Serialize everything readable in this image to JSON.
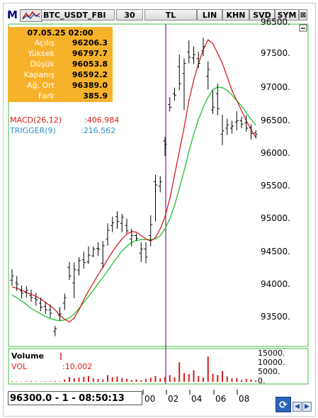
{
  "toolbar": {
    "logo": "M",
    "symbol": "BTC_USDT_FBI",
    "period": "30",
    "currency": "TL",
    "buttons": [
      "LIN",
      "KHN",
      "SVD",
      "SYM"
    ],
    "close_glyph": "⊠",
    "pin_glyph": "▭"
  },
  "info": {
    "datetime": "07.05.25 02:00",
    "rows": [
      {
        "label": "Açılış",
        "value": "96206.3"
      },
      {
        "label": "Yüksek",
        "value": "96797.7"
      },
      {
        "label": "Düşük",
        "value": "96053.8"
      },
      {
        "label": "Kapanış",
        "value": "96592.2"
      },
      {
        "label": "Ağ. Ort",
        "value": "96389.0"
      },
      {
        "label": "Fark",
        "value": "385.9"
      }
    ]
  },
  "indicators": {
    "macd_label": "MACD(26,12)",
    "macd_value": ":406.984",
    "trigger_label": "TRIGGER(9)",
    "trigger_value": ":216.562"
  },
  "price_axis": [
    "97500.",
    "97000.",
    "96500.",
    "96000.",
    "95500.",
    "95000.",
    "94500.",
    "94000.",
    "93500."
  ],
  "volume": {
    "title": "Volume",
    "label": "VOL",
    "value": ":10,002",
    "axis": [
      "15000.",
      "10000.",
      "5000.",
      "0."
    ]
  },
  "status": {
    "readout": "96300.0 - 1 - 08:50:13"
  },
  "time_axis": [
    "00",
    "02",
    "04",
    "06",
    "08"
  ],
  "nav": {
    "refresh_glyph": "⟳",
    "left_glyph": "◀",
    "right_glyph": "▶"
  },
  "colors": {
    "info_bg": "#f7b22b",
    "chart_border": "#3fbf3f",
    "macd_line": "#d91b1b",
    "trigger_line": "#22c22a",
    "cursor_line": "#7a1f9a",
    "volume_bar": "#d91b1b"
  },
  "chart_data": {
    "type": "ohlc",
    "ylim": [
      93200,
      97900
    ],
    "ohlc": [
      [
        94140,
        94300,
        94060,
        94200
      ],
      [
        94100,
        94200,
        93980,
        94080
      ],
      [
        93980,
        94060,
        93870,
        93950
      ],
      [
        93960,
        94050,
        93880,
        93990
      ],
      [
        93910,
        94000,
        93820,
        93880
      ],
      [
        93870,
        93950,
        93760,
        93850
      ],
      [
        93800,
        93880,
        93680,
        93740
      ],
      [
        93750,
        93820,
        93640,
        93700
      ],
      [
        93700,
        93780,
        93580,
        93650
      ],
      [
        93380,
        93460,
        93310,
        93420
      ],
      [
        93620,
        93740,
        93540,
        93640
      ],
      [
        93800,
        93940,
        93700,
        93880
      ],
      [
        94330,
        94410,
        94140,
        94200
      ],
      [
        94100,
        94400,
        93870,
        94300
      ],
      [
        94290,
        94480,
        94210,
        94430
      ],
      [
        94440,
        94560,
        94310,
        94400
      ],
      [
        94410,
        94640,
        94380,
        94510
      ],
      [
        94500,
        94640,
        94480,
        94600
      ],
      [
        94610,
        94700,
        94500,
        94600
      ],
      [
        94390,
        94720,
        94320,
        94650
      ],
      [
        94750,
        94980,
        94650,
        94880
      ],
      [
        94950,
        95080,
        94850,
        94990
      ],
      [
        95080,
        95160,
        94900,
        95010
      ],
      [
        94980,
        95120,
        94850,
        95070
      ],
      [
        94950,
        95050,
        94830,
        94870
      ],
      [
        94750,
        94900,
        94640,
        94800
      ],
      [
        94800,
        94830,
        94720,
        94760
      ],
      [
        94540,
        94700,
        94410,
        94600
      ],
      [
        94600,
        94700,
        94390,
        94480
      ],
      [
        94800,
        95100,
        94640,
        94960
      ],
      [
        95600,
        95700,
        95010,
        95550
      ],
      [
        95530,
        95680,
        95440,
        95600
      ],
      [
        96200,
        96260,
        95980,
        96150
      ],
      [
        96740,
        96850,
        96640,
        96700
      ],
      [
        96900,
        96990,
        96800,
        96880
      ],
      [
        97300,
        97480,
        96950,
        97050
      ],
      [
        97200,
        97420,
        96660,
        97350
      ],
      [
        97520,
        97690,
        97350,
        97440
      ],
      [
        97430,
        97600,
        97340,
        97480
      ],
      [
        97420,
        97520,
        97280,
        97350
      ],
      [
        97540,
        97730,
        97460,
        97600
      ],
      [
        97160,
        97380,
        96960,
        97260
      ],
      [
        96660,
        96950,
        96600,
        96700
      ],
      [
        96900,
        97050,
        96580,
        96680
      ],
      [
        96300,
        96590,
        96140,
        96350
      ],
      [
        96390,
        96530,
        96290,
        96440
      ],
      [
        96390,
        96500,
        96310,
        96420
      ],
      [
        96480,
        96640,
        96360,
        96500
      ],
      [
        96500,
        96560,
        96390,
        96450
      ],
      [
        96470,
        96580,
        96340,
        96390
      ],
      [
        96400,
        96450,
        96220,
        96310
      ],
      [
        96320,
        96360,
        96240,
        96300
      ]
    ],
    "fast_line": [
      94040,
      94020,
      93990,
      93960,
      93930,
      93900,
      93860,
      93810,
      93760,
      93700,
      93620,
      93560,
      93520,
      93580,
      93700,
      93850,
      93980,
      94100,
      94220,
      94330,
      94450,
      94560,
      94660,
      94750,
      94820,
      94860,
      94850,
      94800,
      94750,
      94720,
      94770,
      94900,
      95080,
      95350,
      95700,
      96050,
      96400,
      96800,
      97100,
      97350,
      97550,
      97700,
      97640,
      97500,
      97350,
      97150,
      96950,
      96800,
      96650,
      96500,
      96370,
      96250
    ],
    "slow_line": [
      93920,
      93880,
      93830,
      93780,
      93720,
      93680,
      93640,
      93600,
      93570,
      93550,
      93540,
      93550,
      93580,
      93640,
      93720,
      93810,
      93900,
      93990,
      94090,
      94180,
      94280,
      94380,
      94480,
      94570,
      94640,
      94700,
      94730,
      94740,
      94740,
      94740,
      94750,
      94800,
      94900,
      95050,
      95250,
      95500,
      95760,
      96050,
      96300,
      96520,
      96700,
      96850,
      96960,
      97000,
      96990,
      96950,
      96880,
      96800,
      96720,
      96620,
      96520,
      96430
    ],
    "volume_values": [
      300,
      200,
      150,
      250,
      300,
      200,
      180,
      220,
      260,
      300,
      250,
      1200,
      2500,
      1800,
      2200,
      2600,
      3000,
      1800,
      1500,
      1200,
      3500,
      2400,
      2800,
      2000,
      1500,
      1000,
      1200,
      800,
      1500,
      2200,
      3000,
      1800,
      2500,
      3500,
      2400,
      10000,
      4500,
      4000,
      6000,
      3000,
      2200,
      13000,
      4200,
      3500,
      5500,
      2800,
      1800,
      2000,
      900,
      1500,
      1200,
      700
    ],
    "volume_ylim": [
      0,
      16000
    ]
  }
}
